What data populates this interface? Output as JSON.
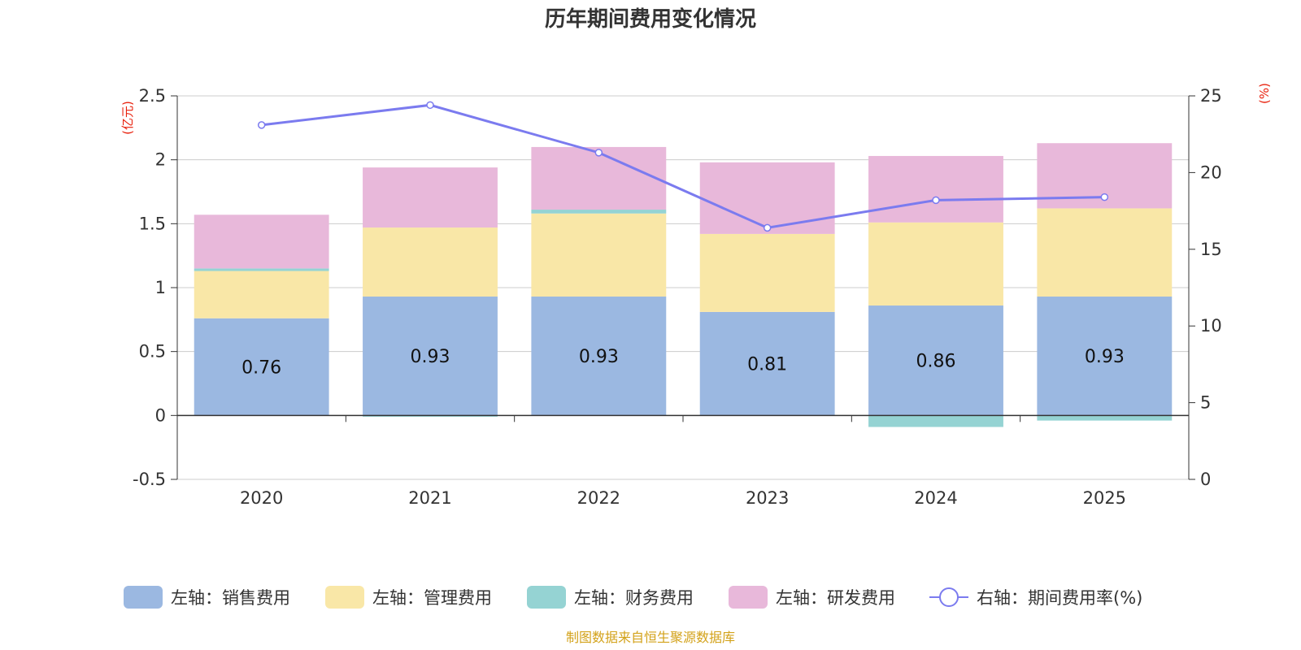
{
  "chart_data": {
    "type": "bar",
    "title": "历年期间费用变化情况",
    "categories": [
      "2020",
      "2021",
      "2022",
      "2023",
      "2024",
      "2025"
    ],
    "series": [
      {
        "name": "左轴：销售费用",
        "axis": "left",
        "type": "bar",
        "color": "#9bb8e1",
        "values": [
          0.76,
          0.93,
          0.93,
          0.81,
          0.86,
          0.93
        ]
      },
      {
        "name": "左轴：管理费用",
        "axis": "left",
        "type": "bar",
        "color": "#f9e7a7",
        "values": [
          0.37,
          0.54,
          0.65,
          0.61,
          0.65,
          0.69
        ]
      },
      {
        "name": "左轴：财务费用",
        "axis": "left",
        "type": "bar",
        "color": "#95d3d3",
        "values": [
          0.02,
          -0.01,
          0.03,
          0.0,
          -0.09,
          -0.04
        ]
      },
      {
        "name": "左轴：研发费用",
        "axis": "left",
        "type": "bar",
        "color": "#e8b8da",
        "values": [
          0.42,
          0.47,
          0.49,
          0.56,
          0.52,
          0.51
        ]
      },
      {
        "name": "右轴：期间费用率(%)",
        "axis": "right",
        "type": "line",
        "color": "#7b7bef",
        "values": [
          23.1,
          24.4,
          21.3,
          16.4,
          18.2,
          18.4
        ]
      }
    ],
    "data_labels": [
      "0.76",
      "0.93",
      "0.93",
      "0.81",
      "0.86",
      "0.93"
    ],
    "y_left": {
      "unit": "(亿元)",
      "ylim": [
        -0.5,
        2.5
      ],
      "ticks": [
        "-0.5",
        "0",
        "0.5",
        "1",
        "1.5",
        "2",
        "2.5"
      ]
    },
    "y_right": {
      "unit": "(%)",
      "ylim": [
        0,
        25
      ],
      "ticks": [
        "0",
        "5",
        "10",
        "15",
        "20",
        "25"
      ]
    },
    "grid": true,
    "legend_position": "bottom"
  },
  "source_text": "制图数据来自恒生聚源数据库"
}
